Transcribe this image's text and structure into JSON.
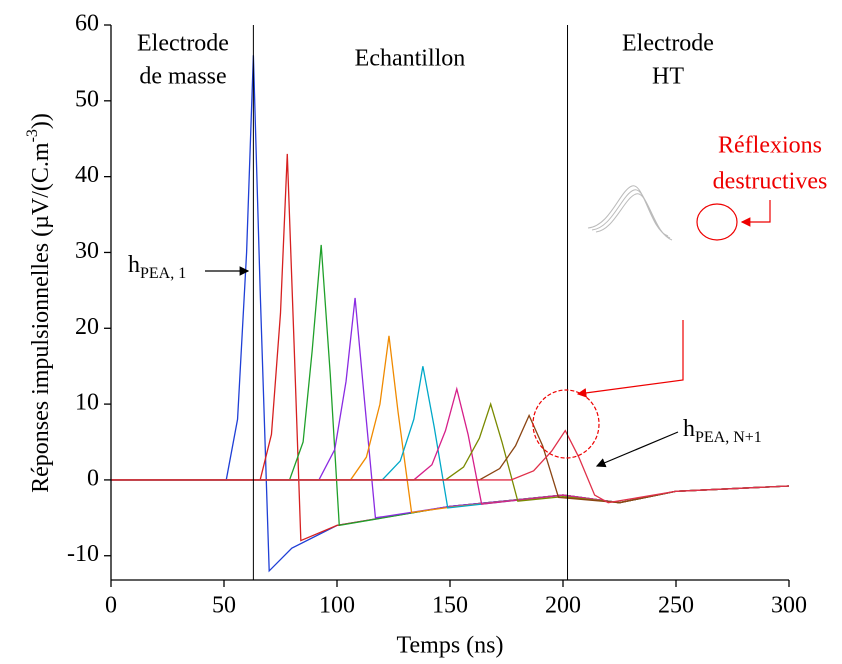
{
  "chart_data": {
    "type": "line",
    "xlabel": "Temps (ns)",
    "ylabel": {
      "text": "Réponses impulsionnelles (µV/(C.m",
      "sup": "-3",
      "tail": "))"
    },
    "xlim": [
      0,
      300
    ],
    "ylim": [
      -13.2,
      60
    ],
    "xticks": [
      0,
      50,
      100,
      150,
      200,
      250,
      300
    ],
    "yticks": [
      -10,
      0,
      10,
      20,
      30,
      40,
      50,
      60
    ],
    "region_lines": [
      63,
      202
    ],
    "region_labels": [
      [
        "Electrode",
        "de masse"
      ],
      [
        "Echantillon"
      ],
      [
        "Electrode",
        "HT"
      ]
    ],
    "reflection_label": [
      "Réflexions",
      "destructives"
    ],
    "first_label": {
      "main": "h",
      "sub": "PEA, 1"
    },
    "last_label": {
      "main": "h",
      "sub": "PEA, N+1"
    },
    "series": [
      {
        "color": "#1f3fd6",
        "x": [
          0,
          51,
          56,
          60,
          63,
          66,
          70,
          80,
          100,
          150,
          200,
          225,
          250,
          300
        ],
        "values": [
          0,
          0,
          8,
          30,
          56,
          25,
          -12,
          -9,
          -6,
          -3.5,
          -2,
          -3,
          -1.5,
          -0.8
        ]
      },
      {
        "color": "#d62020",
        "x": [
          0,
          66,
          71,
          75,
          78,
          81,
          84,
          100,
          150,
          200,
          225,
          250,
          300
        ],
        "values": [
          0,
          0,
          6,
          22,
          43,
          18,
          -8,
          -6,
          -3.5,
          -2,
          -3,
          -1.5,
          -0.8
        ]
      },
      {
        "color": "#1fa02a",
        "x": [
          0,
          79,
          85,
          89,
          93,
          97,
          101,
          150,
          200,
          225,
          250,
          300
        ],
        "values": [
          0,
          0,
          5,
          17,
          31,
          14,
          -6,
          -3.5,
          -2,
          -3,
          -1.5,
          -0.8
        ]
      },
      {
        "color": "#8a2be2",
        "x": [
          0,
          92,
          99,
          104,
          108,
          112,
          117,
          150,
          200,
          225,
          250,
          300
        ],
        "values": [
          0,
          0,
          4,
          13,
          24,
          11,
          -5,
          -3.5,
          -2,
          -3,
          -1.5,
          -0.8
        ]
      },
      {
        "color": "#f08a00",
        "x": [
          0,
          106,
          113,
          119,
          123,
          127,
          133,
          150,
          200,
          225,
          250,
          300
        ],
        "values": [
          0,
          0,
          3,
          10,
          19,
          9,
          -4.3,
          -3.6,
          -2,
          -3,
          -1.5,
          -0.8
        ]
      },
      {
        "color": "#00a8c8",
        "x": [
          0,
          120,
          128,
          134,
          138,
          143,
          149,
          200,
          225,
          250,
          300
        ],
        "values": [
          0,
          0,
          2.5,
          8,
          15,
          7,
          -3.7,
          -2,
          -3,
          -1.5,
          -0.8
        ]
      },
      {
        "color": "#d6208a",
        "x": [
          0,
          134,
          142,
          148,
          153,
          158,
          164,
          200,
          225,
          250,
          300
        ],
        "values": [
          0,
          0,
          2,
          6.5,
          12,
          6,
          -3.2,
          -2,
          -3,
          -1.5,
          -0.8
        ]
      },
      {
        "color": "#7a8a00",
        "x": [
          0,
          148,
          156,
          163,
          168,
          173,
          180,
          200,
          225,
          250,
          300
        ],
        "values": [
          0,
          0,
          1.7,
          5.5,
          10,
          5,
          -2.8,
          -2.2,
          -3,
          -1.5,
          -0.8
        ]
      },
      {
        "color": "#8b4513",
        "x": [
          0,
          163,
          172,
          179,
          185,
          191,
          198,
          225,
          250,
          300
        ],
        "values": [
          0,
          0,
          1.5,
          4.5,
          8.5,
          4.5,
          -2.3,
          -3,
          -1.5,
          -0.8
        ]
      },
      {
        "color": "#e0304a",
        "x": [
          0,
          177,
          187,
          195,
          201,
          207,
          214,
          220,
          250,
          300
        ],
        "values": [
          0,
          0,
          1.2,
          3.8,
          6.5,
          3,
          -2,
          -3,
          -1.5,
          -0.8
        ]
      }
    ]
  }
}
